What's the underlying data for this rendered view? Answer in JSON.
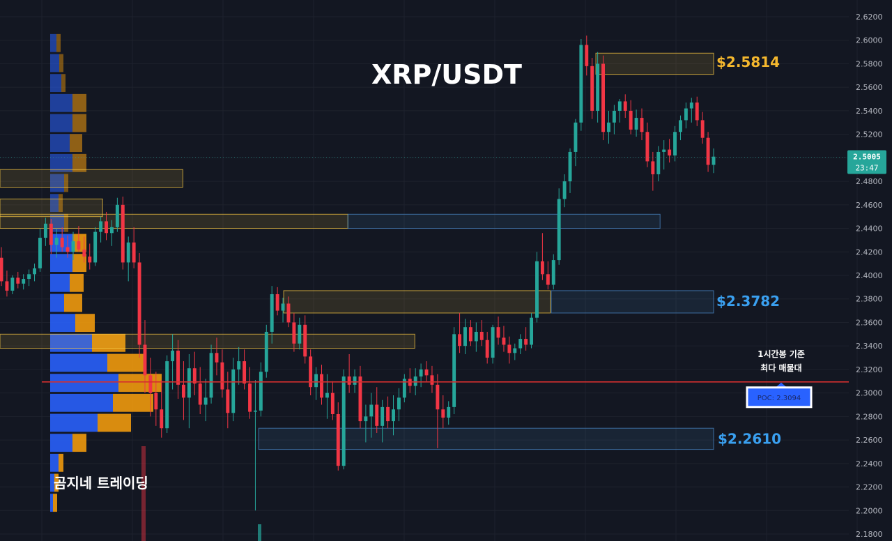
{
  "chart_data": {
    "type": "candlestick",
    "title": "XRP/USDT",
    "watermark": "곰지네 트레이딩",
    "ylim": [
      2.18,
      2.62
    ],
    "y_ticks": [
      "2.6200",
      "2.6000",
      "2.5800",
      "2.5600",
      "2.5400",
      "2.5200",
      "2.5000",
      "2.4800",
      "2.4600",
      "2.4400",
      "2.4200",
      "2.4000",
      "2.3800",
      "2.3600",
      "2.3400",
      "2.3200",
      "2.3000",
      "2.2800",
      "2.2600",
      "2.2400",
      "2.2200",
      "2.2000",
      "2.1800"
    ],
    "current_price": {
      "value": "2.5005",
      "countdown": "23:47"
    },
    "levels": [
      {
        "label": "$2.5814",
        "value": 2.5814,
        "color": "#f5b82e"
      },
      {
        "label": "$2.3782",
        "value": 2.3782,
        "color": "#3aa0f0"
      },
      {
        "label": "$2.2610",
        "value": 2.261,
        "color": "#3aa0f0"
      }
    ],
    "poc": {
      "label": "POC: 2.3094",
      "value": 2.3094,
      "note_line1": "1시간봉 기준",
      "note_line2": "최다 매물대"
    },
    "zones": [
      {
        "kind": "supply",
        "top": 2.589,
        "bottom": 2.571,
        "from": 0.668,
        "to": 0.8
      },
      {
        "kind": "demand",
        "top": 2.387,
        "bottom": 2.368,
        "from": 0.618,
        "to": 0.8
      },
      {
        "kind": "supply",
        "top": 2.387,
        "bottom": 2.368,
        "from": 0.318,
        "to": 0.617
      },
      {
        "kind": "demand",
        "top": 2.27,
        "bottom": 2.252,
        "from": 0.29,
        "to": 0.8
      },
      {
        "kind": "supply",
        "top": 2.452,
        "bottom": 2.44,
        "from": 0.0,
        "to": 0.39
      },
      {
        "kind": "demand",
        "top": 2.452,
        "bottom": 2.44,
        "from": 0.39,
        "to": 0.74
      },
      {
        "kind": "supply",
        "top": 2.35,
        "bottom": 2.338,
        "from": 0.0,
        "to": 0.465
      },
      {
        "kind": "supply",
        "top": 2.49,
        "bottom": 2.475,
        "from": 0.0,
        "to": 0.205
      },
      {
        "kind": "supply",
        "top": 2.465,
        "bottom": 2.45,
        "from": 0.0,
        "to": 0.115
      }
    ],
    "volume_profile": [
      {
        "price": 2.597,
        "buy": 0.09,
        "sell": 0.1
      },
      {
        "price": 2.58,
        "buy": 0.13,
        "sell": 0.15
      },
      {
        "price": 2.563,
        "buy": 0.16,
        "sell": 0.2
      },
      {
        "price": 2.546,
        "buy": 0.32,
        "sell": 0.52
      },
      {
        "price": 2.529,
        "buy": 0.32,
        "sell": 0.52
      },
      {
        "price": 2.512,
        "buy": 0.28,
        "sell": 0.46
      },
      {
        "price": 2.495,
        "buy": 0.32,
        "sell": 0.52
      },
      {
        "price": 2.478,
        "buy": 0.2,
        "sell": 0.26
      },
      {
        "price": 2.461,
        "buy": 0.12,
        "sell": 0.14
      },
      {
        "price": 2.444,
        "buy": 0.2,
        "sell": 0.26
      },
      {
        "price": 2.427,
        "buy": 0.32,
        "sell": 0.52
      },
      {
        "price": 2.41,
        "buy": 0.32,
        "sell": 0.52
      },
      {
        "price": 2.393,
        "buy": 0.28,
        "sell": 0.48
      },
      {
        "price": 2.376,
        "buy": 0.2,
        "sell": 0.46
      },
      {
        "price": 2.359,
        "buy": 0.36,
        "sell": 0.64
      },
      {
        "price": 2.342,
        "buy": 0.6,
        "sell": 1.08
      },
      {
        "price": 2.325,
        "buy": 0.82,
        "sell": 1.34
      },
      {
        "price": 2.308,
        "buy": 0.98,
        "sell": 1.6
      },
      {
        "price": 2.291,
        "buy": 0.9,
        "sell": 1.48
      },
      {
        "price": 2.274,
        "buy": 0.68,
        "sell": 1.16
      },
      {
        "price": 2.257,
        "buy": 0.32,
        "sell": 0.52
      },
      {
        "price": 2.24,
        "buy": 0.12,
        "sell": 0.19
      },
      {
        "price": 2.223,
        "buy": 0.06,
        "sell": 0.08
      },
      {
        "price": 2.206,
        "buy": 0.04,
        "sell": 0.06
      }
    ],
    "candles": [
      [
        2.415,
        2.424,
        2.391,
        2.395
      ],
      [
        2.395,
        2.404,
        2.382,
        2.387
      ],
      [
        2.387,
        2.4,
        2.384,
        2.398
      ],
      [
        2.398,
        2.403,
        2.389,
        2.393
      ],
      [
        2.393,
        2.401,
        2.388,
        2.397
      ],
      [
        2.397,
        2.405,
        2.391,
        2.401
      ],
      [
        2.401,
        2.41,
        2.395,
        2.406
      ],
      [
        2.406,
        2.44,
        2.403,
        2.432
      ],
      [
        2.432,
        2.449,
        2.425,
        2.444
      ],
      [
        2.444,
        2.448,
        2.418,
        2.426
      ],
      [
        2.426,
        2.44,
        2.415,
        2.432
      ],
      [
        2.432,
        2.441,
        2.42,
        2.424
      ],
      [
        2.424,
        2.434,
        2.415,
        2.42
      ],
      [
        2.42,
        2.437,
        2.413,
        2.429
      ],
      [
        2.429,
        2.442,
        2.42,
        2.422
      ],
      [
        2.422,
        2.433,
        2.411,
        2.416
      ],
      [
        2.416,
        2.427,
        2.405,
        2.411
      ],
      [
        2.411,
        2.441,
        2.408,
        2.437
      ],
      [
        2.437,
        2.45,
        2.428,
        2.446
      ],
      [
        2.446,
        2.454,
        2.43,
        2.436
      ],
      [
        2.436,
        2.447,
        2.425,
        2.441
      ],
      [
        2.441,
        2.466,
        2.437,
        2.46
      ],
      [
        2.46,
        2.467,
        2.405,
        2.411
      ],
      [
        2.411,
        2.433,
        2.395,
        2.428
      ],
      [
        2.428,
        2.441,
        2.406,
        2.411
      ],
      [
        2.411,
        2.419,
        2.33,
        2.341
      ],
      [
        2.341,
        2.362,
        2.3,
        2.315
      ],
      [
        2.315,
        2.33,
        2.28,
        2.3
      ],
      [
        2.3,
        2.318,
        2.272,
        2.286
      ],
      [
        2.286,
        2.311,
        2.262,
        2.27
      ],
      [
        2.27,
        2.332,
        2.266,
        2.327
      ],
      [
        2.327,
        2.35,
        2.303,
        2.336
      ],
      [
        2.336,
        2.345,
        2.295,
        2.307
      ],
      [
        2.307,
        2.327,
        2.277,
        2.296
      ],
      [
        2.296,
        2.333,
        2.27,
        2.321
      ],
      [
        2.321,
        2.335,
        2.298,
        2.308
      ],
      [
        2.308,
        2.322,
        2.282,
        2.29
      ],
      [
        2.29,
        2.312,
        2.276,
        2.296
      ],
      [
        2.296,
        2.341,
        2.291,
        2.334
      ],
      [
        2.334,
        2.347,
        2.315,
        2.326
      ],
      [
        2.326,
        2.337,
        2.296,
        2.303
      ],
      [
        2.303,
        2.318,
        2.27,
        2.283
      ],
      [
        2.283,
        2.33,
        2.276,
        2.32
      ],
      [
        2.32,
        2.339,
        2.307,
        2.327
      ],
      [
        2.327,
        2.337,
        2.303,
        2.308
      ],
      [
        2.308,
        2.322,
        2.278,
        2.284
      ],
      [
        2.284,
        2.311,
        2.2,
        2.285
      ],
      [
        2.285,
        2.326,
        2.28,
        2.318
      ],
      [
        2.318,
        2.358,
        2.313,
        2.352
      ],
      [
        2.352,
        2.391,
        2.342,
        2.384
      ],
      [
        2.384,
        2.39,
        2.366,
        2.37
      ],
      [
        2.37,
        2.381,
        2.36,
        2.376
      ],
      [
        2.376,
        2.382,
        2.356,
        2.36
      ],
      [
        2.36,
        2.368,
        2.335,
        2.342
      ],
      [
        2.342,
        2.364,
        2.337,
        2.358
      ],
      [
        2.358,
        2.366,
        2.325,
        2.331
      ],
      [
        2.331,
        2.337,
        2.298,
        2.305
      ],
      [
        2.305,
        2.322,
        2.294,
        2.316
      ],
      [
        2.316,
        2.324,
        2.29,
        2.296
      ],
      [
        2.296,
        2.316,
        2.278,
        2.3
      ],
      [
        2.3,
        2.31,
        2.277,
        2.282
      ],
      [
        2.282,
        2.292,
        2.234,
        2.238
      ],
      [
        2.238,
        2.32,
        2.235,
        2.314
      ],
      [
        2.314,
        2.333,
        2.3,
        2.307
      ],
      [
        2.307,
        2.32,
        2.3,
        2.314
      ],
      [
        2.314,
        2.323,
        2.27,
        2.276
      ],
      [
        2.276,
        2.29,
        2.258,
        2.28
      ],
      [
        2.28,
        2.3,
        2.262,
        2.29
      ],
      [
        2.29,
        2.305,
        2.266,
        2.272
      ],
      [
        2.272,
        2.294,
        2.258,
        2.288
      ],
      [
        2.288,
        2.297,
        2.27,
        2.276
      ],
      [
        2.276,
        2.298,
        2.264,
        2.286
      ],
      [
        2.286,
        2.304,
        2.276,
        2.296
      ],
      [
        2.296,
        2.316,
        2.292,
        2.312
      ],
      [
        2.312,
        2.321,
        2.3,
        2.306
      ],
      [
        2.306,
        2.321,
        2.298,
        2.314
      ],
      [
        2.314,
        2.325,
        2.305,
        2.32
      ],
      [
        2.32,
        2.327,
        2.31,
        2.315
      ],
      [
        2.315,
        2.323,
        2.3,
        2.307
      ],
      [
        2.307,
        2.316,
        2.253,
        2.286
      ],
      [
        2.286,
        2.298,
        2.27,
        2.279
      ],
      [
        2.279,
        2.293,
        2.273,
        2.288
      ],
      [
        2.288,
        2.356,
        2.282,
        2.35
      ],
      [
        2.35,
        2.368,
        2.334,
        2.34
      ],
      [
        2.34,
        2.363,
        2.333,
        2.356
      ],
      [
        2.356,
        2.362,
        2.34,
        2.344
      ],
      [
        2.344,
        2.36,
        2.335,
        2.352
      ],
      [
        2.352,
        2.362,
        2.34,
        2.345
      ],
      [
        2.345,
        2.352,
        2.325,
        2.33
      ],
      [
        2.33,
        2.358,
        2.325,
        2.356
      ],
      [
        2.356,
        2.365,
        2.341,
        2.347
      ],
      [
        2.347,
        2.357,
        2.335,
        2.341
      ],
      [
        2.341,
        2.348,
        2.325,
        2.334
      ],
      [
        2.334,
        2.342,
        2.328,
        2.338
      ],
      [
        2.338,
        2.35,
        2.333,
        2.346
      ],
      [
        2.346,
        2.356,
        2.336,
        2.341
      ],
      [
        2.341,
        2.368,
        2.338,
        2.364
      ],
      [
        2.364,
        2.42,
        2.36,
        2.412
      ],
      [
        2.412,
        2.436,
        2.396,
        2.401
      ],
      [
        2.401,
        2.412,
        2.388,
        2.392
      ],
      [
        2.392,
        2.418,
        2.388,
        2.413
      ],
      [
        2.413,
        2.474,
        2.409,
        2.465
      ],
      [
        2.465,
        2.486,
        2.458,
        2.48
      ],
      [
        2.48,
        2.508,
        2.47,
        2.505
      ],
      [
        2.505,
        2.533,
        2.493,
        2.53
      ],
      [
        2.53,
        2.601,
        2.523,
        2.596
      ],
      [
        2.596,
        2.604,
        2.57,
        2.578
      ],
      [
        2.578,
        2.585,
        2.533,
        2.54
      ],
      [
        2.54,
        2.59,
        2.53,
        2.58
      ],
      [
        2.58,
        2.587,
        2.515,
        2.522
      ],
      [
        2.522,
        2.54,
        2.512,
        2.53
      ],
      [
        2.53,
        2.545,
        2.52,
        2.54
      ],
      [
        2.54,
        2.55,
        2.53,
        2.548
      ],
      [
        2.548,
        2.554,
        2.534,
        2.54
      ],
      [
        2.54,
        2.549,
        2.52,
        2.524
      ],
      [
        2.524,
        2.541,
        2.518,
        2.534
      ],
      [
        2.534,
        2.542,
        2.515,
        2.522
      ],
      [
        2.522,
        2.53,
        2.492,
        2.497
      ],
      [
        2.497,
        2.505,
        2.472,
        2.486
      ],
      [
        2.486,
        2.51,
        2.48,
        2.505
      ],
      [
        2.505,
        2.515,
        2.49,
        2.507
      ],
      [
        2.507,
        2.516,
        2.496,
        2.502
      ],
      [
        2.502,
        2.527,
        2.497,
        2.522
      ],
      [
        2.522,
        2.536,
        2.515,
        2.532
      ],
      [
        2.532,
        2.547,
        2.525,
        2.542
      ],
      [
        2.542,
        2.551,
        2.53,
        2.547
      ],
      [
        2.547,
        2.552,
        2.527,
        2.532
      ],
      [
        2.532,
        2.539,
        2.512,
        2.517
      ],
      [
        2.517,
        2.522,
        2.488,
        2.494
      ],
      [
        2.494,
        2.508,
        2.487,
        2.501
      ]
    ],
    "colors": {
      "up": "#26a69a",
      "down": "#f23645",
      "background": "#131722",
      "grid": "#1e222d",
      "poc_line": "#d32f2f",
      "profile_buy": "#2962ff",
      "profile_sell": "#f59d0c",
      "current_price_bg": "#26a69a",
      "poc_box_bg": "#2962ff",
      "supply_zone": "#f5c542",
      "demand_zone": "#4a88c7"
    }
  }
}
